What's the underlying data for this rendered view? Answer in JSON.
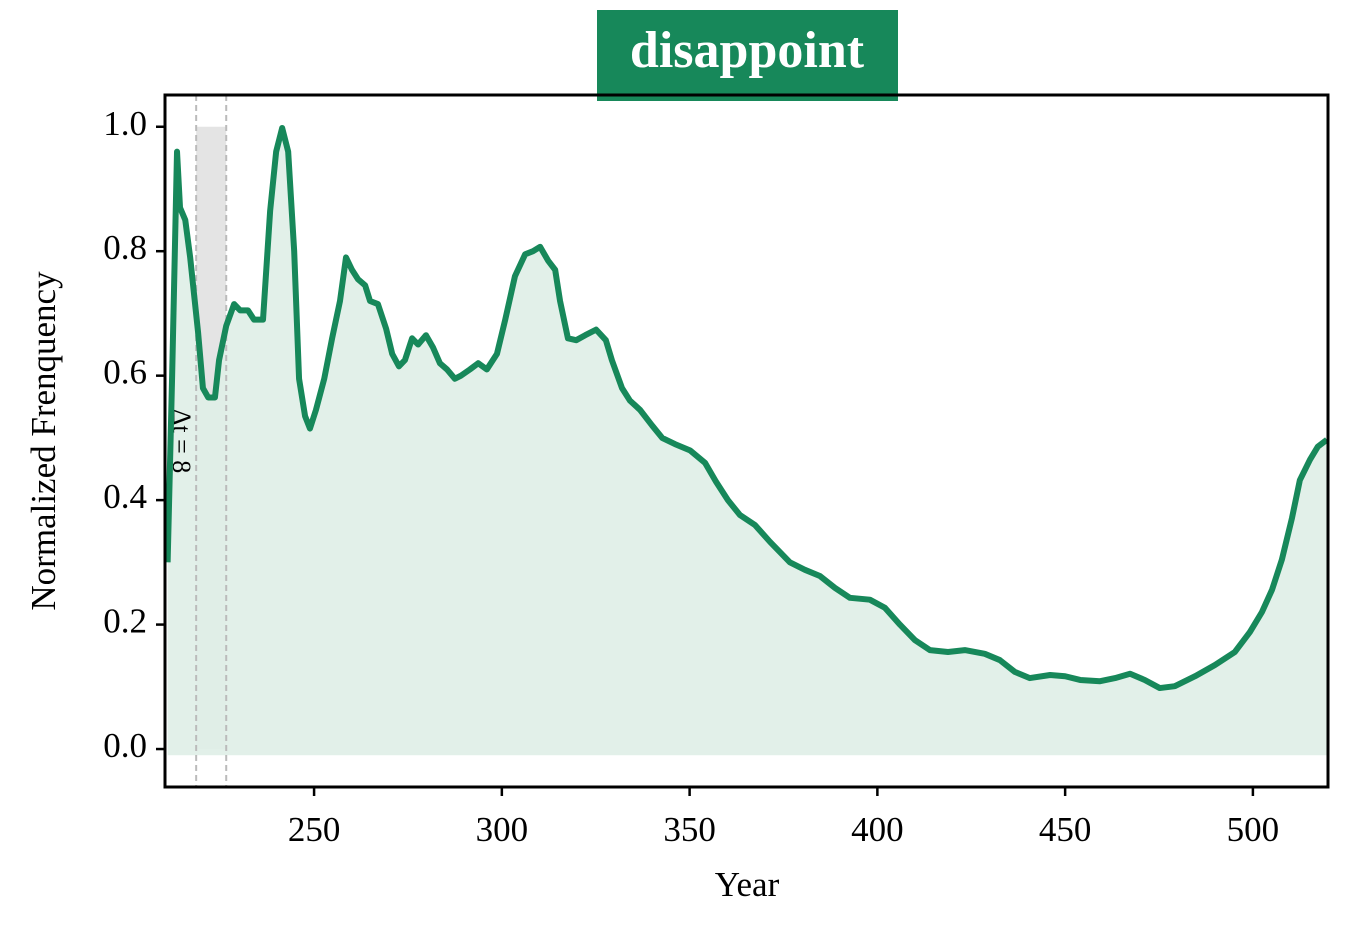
{
  "chart_data": {
    "type": "line",
    "title": "disappoint",
    "x_label": "Year",
    "y_label": "Normalized Frenquency",
    "color": "#17885a",
    "fill_color": "#dfeee7",
    "fill_base": -0.01,
    "xlim": [
      210.3,
      520
    ],
    "ylim": [
      -0.061,
      1.051
    ],
    "xticks": [
      250,
      300,
      350,
      400,
      450,
      500
    ],
    "yticks": [
      {
        "value": 0,
        "label": "0.0"
      },
      0.2,
      0.4,
      0.6,
      0.8,
      {
        "value": 1,
        "label": "1.0"
      }
    ],
    "span": {
      "start": 218.6,
      "end": 226.6,
      "label": "Δt = 8"
    },
    "x": [
      211,
      212.2,
      213.5,
      214.3,
      215.7,
      217,
      219.1,
      220.4,
      221.8,
      223.6,
      224.7,
      226.6,
      228.7,
      230.3,
      232.4,
      234,
      236.4,
      238.3,
      239.9,
      241.5,
      243.1,
      244.7,
      246,
      247.6,
      248.9,
      250.5,
      252.7,
      254.8,
      256.9,
      258.5,
      260.1,
      261.7,
      263.6,
      264.9,
      267,
      269.2,
      270.8,
      272.6,
      274.2,
      276.1,
      277.7,
      279.8,
      281.7,
      283.5,
      285.4,
      287.5,
      289.1,
      291.5,
      293.7,
      296,
      298.7,
      300.9,
      303.5,
      306.2,
      308.3,
      310.2,
      312.3,
      314.2,
      315.5,
      317.6,
      319.8,
      322.2,
      325.1,
      327.7,
      329.3,
      332,
      334.1,
      336.8,
      340,
      342.7,
      346.1,
      350.1,
      354.1,
      357,
      360.2,
      363.4,
      367.4,
      371.4,
      376.7,
      380.7,
      384.7,
      388.7,
      392.7,
      398,
      402,
      406,
      410,
      414,
      418.8,
      423.3,
      428.6,
      432.6,
      436.6,
      440.6,
      446,
      450,
      454,
      459.3,
      463.3,
      467.3,
      471.2,
      475.2,
      479.2,
      484.6,
      489.9,
      495.2,
      499.2,
      502.4,
      505.1,
      507.7,
      510.4,
      512.5,
      515.2,
      517.3,
      519.7
    ],
    "values": [
      0.3,
      0.6,
      0.96,
      0.87,
      0.85,
      0.79,
      0.67,
      0.58,
      0.565,
      0.565,
      0.625,
      0.68,
      0.715,
      0.705,
      0.705,
      0.69,
      0.69,
      0.865,
      0.96,
      0.998,
      0.96,
      0.8,
      0.595,
      0.535,
      0.515,
      0.545,
      0.595,
      0.66,
      0.72,
      0.79,
      0.77,
      0.755,
      0.745,
      0.72,
      0.715,
      0.675,
      0.635,
      0.615,
      0.625,
      0.66,
      0.65,
      0.665,
      0.645,
      0.62,
      0.61,
      0.595,
      0.6,
      0.61,
      0.62,
      0.61,
      0.635,
      0.69,
      0.76,
      0.795,
      0.8,
      0.807,
      0.785,
      0.77,
      0.72,
      0.66,
      0.657,
      0.665,
      0.674,
      0.657,
      0.625,
      0.58,
      0.56,
      0.545,
      0.52,
      0.5,
      0.49,
      0.48,
      0.46,
      0.43,
      0.4,
      0.376,
      0.36,
      0.333,
      0.3,
      0.288,
      0.278,
      0.259,
      0.243,
      0.24,
      0.227,
      0.2,
      0.175,
      0.159,
      0.156,
      0.159,
      0.153,
      0.143,
      0.124,
      0.114,
      0.119,
      0.117,
      0.111,
      0.109,
      0.114,
      0.121,
      0.111,
      0.098,
      0.101,
      0.117,
      0.135,
      0.156,
      0.188,
      0.22,
      0.256,
      0.304,
      0.371,
      0.432,
      0.465,
      0.486,
      0.497
    ]
  }
}
